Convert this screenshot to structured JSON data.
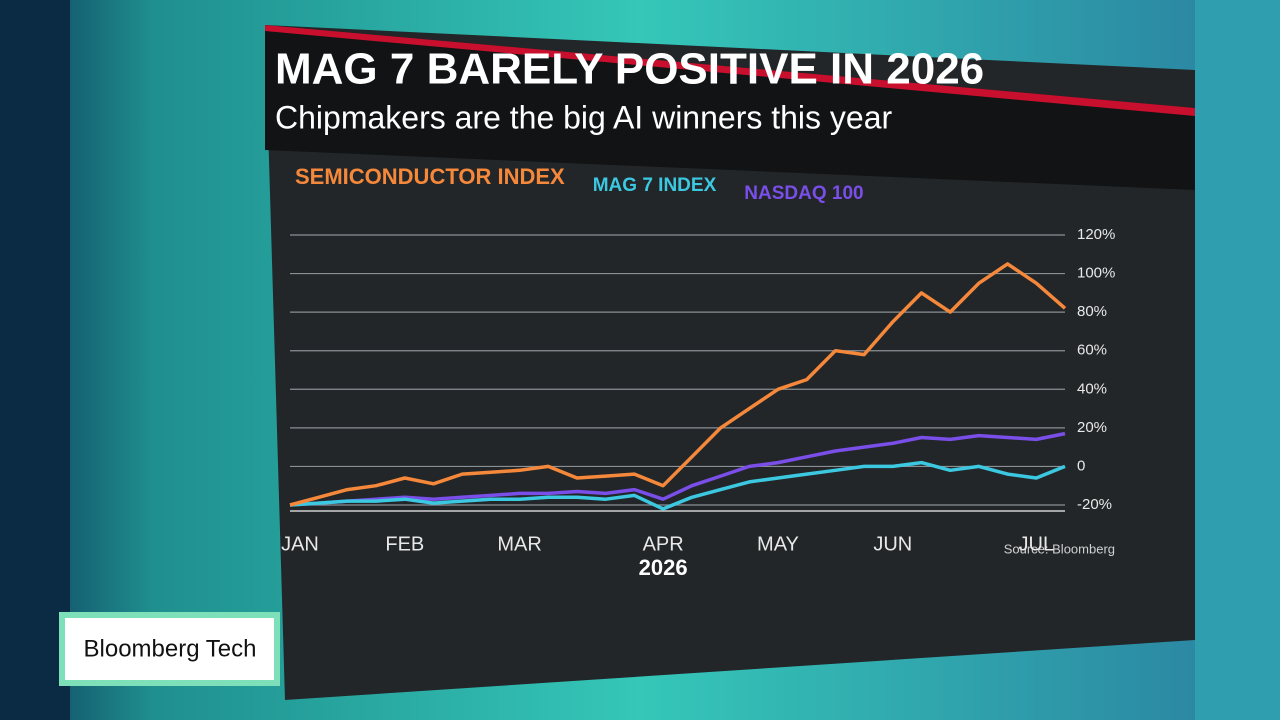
{
  "show_name": "Bloomberg Tech",
  "chart_data": {
    "type": "line",
    "title": "MAG 7 BARELY POSITIVE IN 2026",
    "subtitle": "Chipmakers are the big AI winners this year",
    "x_label": "2026",
    "source": "Source: Bloomberg",
    "categories": [
      "JAN",
      null,
      null,
      null,
      "FEB",
      null,
      null,
      null,
      "MAR",
      null,
      null,
      null,
      null,
      "APR",
      null,
      null,
      null,
      "MAY",
      null,
      null,
      null,
      "JUN",
      null,
      null,
      null,
      null,
      "JUL",
      null
    ],
    "series": [
      {
        "name": "SEMICONDUCTOR INDEX",
        "color": "#f5883a",
        "values": [
          -20,
          -16,
          -12,
          -10,
          -6,
          -9,
          -4,
          -3,
          -2,
          0,
          -6,
          -5,
          -4,
          -10,
          5,
          20,
          30,
          40,
          45,
          60,
          58,
          75,
          90,
          80,
          95,
          105,
          95,
          82
        ]
      },
      {
        "name": "MAG 7 INDEX",
        "color": "#3cc8e0",
        "values": [
          -20,
          -19,
          -18,
          -18,
          -17,
          -19,
          -18,
          -17,
          -17,
          -16,
          -16,
          -17,
          -15,
          -22,
          -16,
          -12,
          -8,
          -6,
          -4,
          -2,
          0,
          0,
          2,
          -2,
          0,
          -4,
          -6,
          0
        ]
      },
      {
        "name": "NASDAQ 100",
        "color": "#7a4ee8",
        "values": [
          -20,
          -19,
          -18,
          -17,
          -16,
          -17,
          -16,
          -15,
          -14,
          -14,
          -13,
          -14,
          -12,
          -17,
          -10,
          -5,
          0,
          2,
          5,
          8,
          10,
          12,
          15,
          14,
          16,
          15,
          14,
          17
        ]
      }
    ],
    "ylim": [
      -20,
      120
    ],
    "yticks": [
      {
        "value": -20,
        "label": "-20%"
      },
      0,
      {
        "value": 20,
        "label": "20%"
      },
      {
        "value": 40,
        "label": "40%"
      },
      {
        "value": 60,
        "label": "60%"
      },
      {
        "value": 80,
        "label": "80%"
      },
      {
        "value": 100,
        "label": "100%"
      },
      {
        "value": 120,
        "label": "120%"
      }
    ],
    "grid": true
  }
}
